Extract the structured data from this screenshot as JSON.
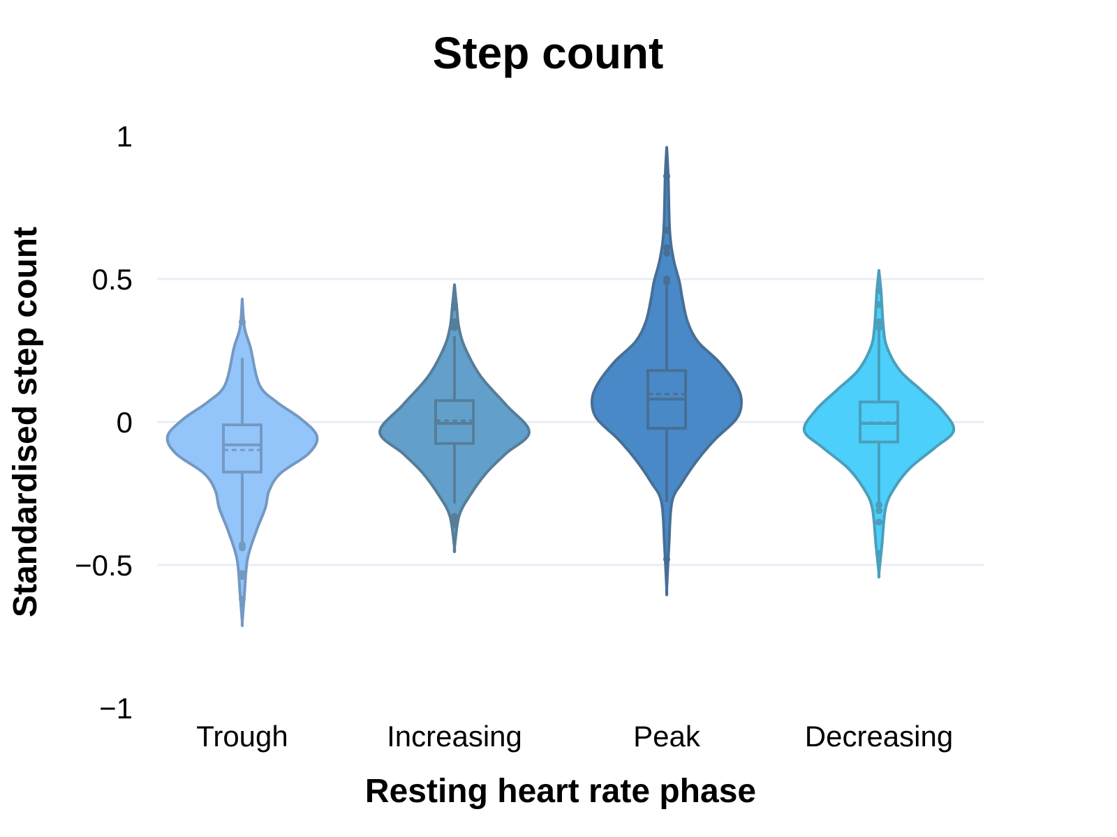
{
  "chart_data": {
    "type": "violin",
    "title": "Step count",
    "xlabel": "Resting heart rate phase",
    "ylabel": "Standardised step count",
    "ylim": [
      -1,
      1
    ],
    "yticks": [
      1,
      0.5,
      0,
      -0.5,
      -1
    ],
    "ytick_labels": [
      "1",
      "0.5",
      "0",
      "−0.5",
      "−1"
    ],
    "grid": true,
    "categories": [
      "Trough",
      "Increasing",
      "Peak",
      "Decreasing"
    ],
    "series": [
      {
        "category": "Trough",
        "fill": "#93c5fb",
        "line": "#7499c2",
        "box": {
          "q1": -0.175,
          "median": -0.08,
          "mean": -0.098,
          "q3": -0.01,
          "whisker_low": -0.43,
          "whisker_high": 0.224
        },
        "outliers": [
          0.35,
          -0.43,
          -0.44,
          -0.53,
          -0.54,
          -0.62
        ],
        "density": [
          [
            0.43,
            0
          ],
          [
            0.33,
            0.03
          ],
          [
            0.26,
            0.11
          ],
          [
            0.13,
            0.23
          ],
          [
            0.07,
            0.46
          ],
          [
            0.01,
            0.79
          ],
          [
            -0.05,
            1
          ],
          [
            -0.11,
            0.89
          ],
          [
            -0.18,
            0.51
          ],
          [
            -0.24,
            0.36
          ],
          [
            -0.3,
            0.31
          ],
          [
            -0.38,
            0.19
          ],
          [
            -0.48,
            0.07
          ],
          [
            -0.6,
            0.03
          ],
          [
            -0.7,
            0
          ]
        ]
      },
      {
        "category": "Increasing",
        "fill": "#62a0cb",
        "line": "#567d99",
        "box": {
          "q1": -0.075,
          "median": -0.005,
          "mean": 0.005,
          "q3": 0.075,
          "whisker_low": -0.285,
          "whisker_high": 0.3
        },
        "outliers": [
          0.41,
          0.4,
          0.35,
          0.33,
          -0.33,
          -0.35,
          -0.36
        ],
        "density": [
          [
            0.48,
            0
          ],
          [
            0.4,
            0.03
          ],
          [
            0.33,
            0.06
          ],
          [
            0.26,
            0.14
          ],
          [
            0.16,
            0.35
          ],
          [
            0.06,
            0.69
          ],
          [
            -0.035,
            1
          ],
          [
            -0.11,
            0.69
          ],
          [
            -0.18,
            0.42
          ],
          [
            -0.26,
            0.2
          ],
          [
            -0.33,
            0.06
          ],
          [
            -0.44,
            0
          ]
        ]
      },
      {
        "category": "Peak",
        "fill": "#4a89c8",
        "line": "#476f95",
        "box": {
          "q1": -0.022,
          "median": 0.08,
          "mean": 0.098,
          "q3": 0.18,
          "whisker_low": -0.28,
          "whisker_high": 0.49
        },
        "outliers": [
          0.86,
          0.67,
          0.61,
          0.59,
          0.5,
          0.49,
          -0.48
        ],
        "density": [
          [
            0.96,
            0
          ],
          [
            0.86,
            0.02
          ],
          [
            0.67,
            0.04
          ],
          [
            0.57,
            0.09
          ],
          [
            0.49,
            0.17
          ],
          [
            0.43,
            0.21
          ],
          [
            0.35,
            0.28
          ],
          [
            0.28,
            0.42
          ],
          [
            0.21,
            0.7
          ],
          [
            0.13,
            0.93
          ],
          [
            0.07,
            1
          ],
          [
            0.01,
            0.93
          ],
          [
            -0.06,
            0.65
          ],
          [
            -0.13,
            0.42
          ],
          [
            -0.21,
            0.21
          ],
          [
            -0.28,
            0.07
          ],
          [
            -0.43,
            0.03
          ],
          [
            -0.585,
            0
          ]
        ]
      },
      {
        "category": "Decreasing",
        "fill": "#4ccffb",
        "line": "#4a9fbb",
        "box": {
          "q1": -0.07,
          "median": -0.005,
          "mean": -0.002,
          "q3": 0.07,
          "whisker_low": -0.28,
          "whisker_high": 0.33
        },
        "outliers": [
          0.46,
          0.41,
          0.35,
          0.33,
          -0.29,
          -0.31,
          -0.35,
          -0.46
        ],
        "density": [
          [
            0.53,
            0
          ],
          [
            0.45,
            0.03
          ],
          [
            0.33,
            0.06
          ],
          [
            0.26,
            0.11
          ],
          [
            0.18,
            0.28
          ],
          [
            0.11,
            0.57
          ],
          [
            0.04,
            0.85
          ],
          [
            -0.03,
            1
          ],
          [
            -0.09,
            0.75
          ],
          [
            -0.16,
            0.42
          ],
          [
            -0.23,
            0.21
          ],
          [
            -0.3,
            0.09
          ],
          [
            -0.43,
            0.04
          ],
          [
            -0.53,
            0
          ]
        ]
      }
    ]
  }
}
